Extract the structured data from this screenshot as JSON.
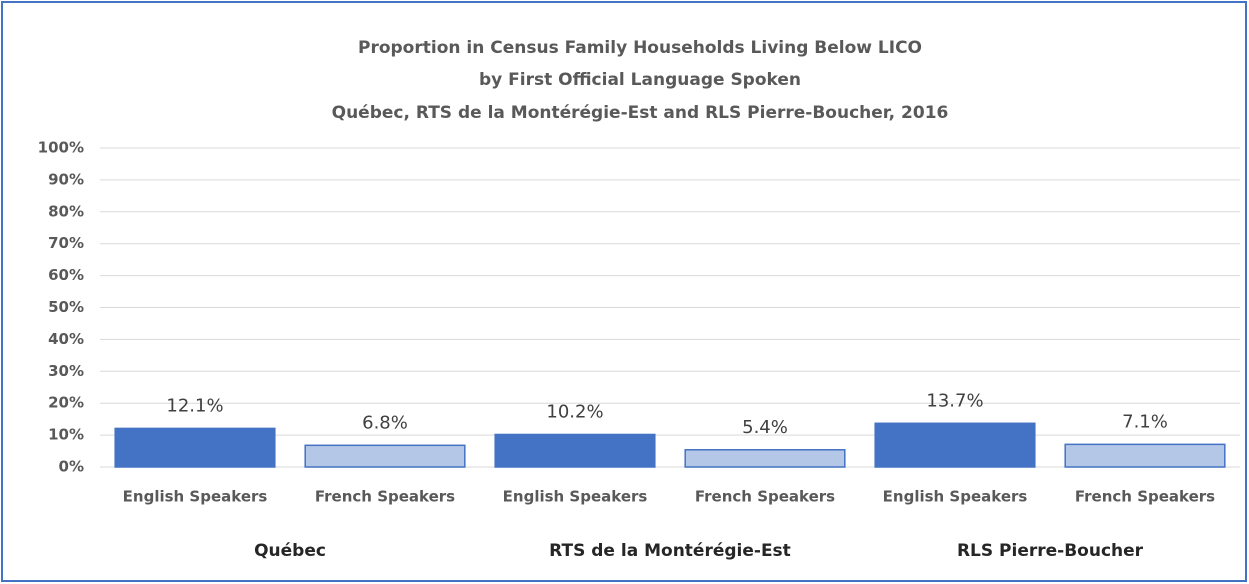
{
  "chart_data": {
    "type": "bar",
    "title": [
      "Proportion in Census Family Households Living Below LICO",
      "by First Official Language Spoken",
      "Québec, RTS de la Montérégie-Est and RLS Pierre-Boucher, 2016"
    ],
    "categories": [
      "Québec",
      "RTS de la Montérégie-Est",
      "RLS Pierre-Boucher"
    ],
    "series": [
      {
        "name": "English Speakers",
        "color": "#4472c4",
        "values": [
          12.1,
          10.2,
          13.7
        ],
        "value_labels": [
          "12.1%",
          "10.2%",
          "13.7%"
        ]
      },
      {
        "name": "French Speakers",
        "color": "#b4c7e7",
        "values": [
          6.8,
          5.4,
          7.1
        ],
        "value_labels": [
          "6.8%",
          "5.4%",
          "7.1%"
        ]
      }
    ],
    "ylim": [
      0,
      100
    ],
    "yticks": [
      {
        "value": 0,
        "label": "0%"
      },
      {
        "value": 10,
        "label": "10%"
      },
      {
        "value": 20,
        "label": "20%"
      },
      {
        "value": 30,
        "label": "30%"
      },
      {
        "value": 40,
        "label": "40%"
      },
      {
        "value": 50,
        "label": "50%"
      },
      {
        "value": 60,
        "label": "60%"
      },
      {
        "value": 70,
        "label": "70%"
      },
      {
        "value": 80,
        "label": "80%"
      },
      {
        "value": 90,
        "label": "90%"
      },
      {
        "value": 100,
        "label": "100%"
      }
    ],
    "grid": true
  }
}
